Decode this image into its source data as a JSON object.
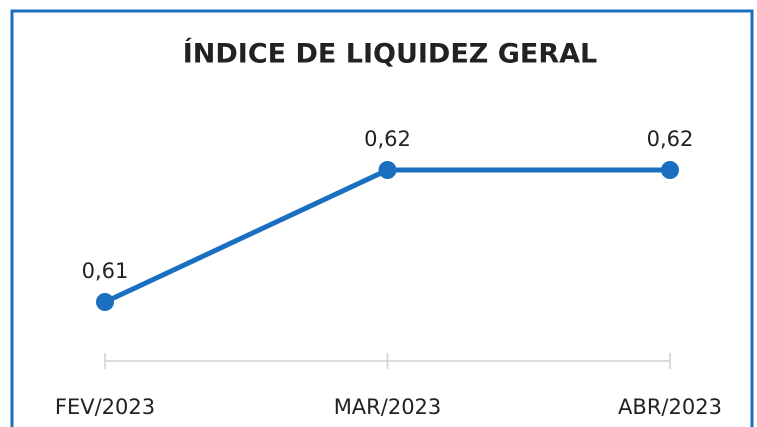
{
  "chart_data": {
    "type": "line",
    "title": "ÍNDICE DE LIQUIDEZ GERAL",
    "categories": [
      "FEV/2023",
      "MAR/2023",
      "ABR/2023"
    ],
    "series": [
      {
        "color": "#1a6fc1",
        "values": [
          0.61,
          0.62,
          0.62
        ],
        "value_labels": [
          "0,61",
          "0,62",
          "0,62"
        ]
      }
    ]
  }
}
